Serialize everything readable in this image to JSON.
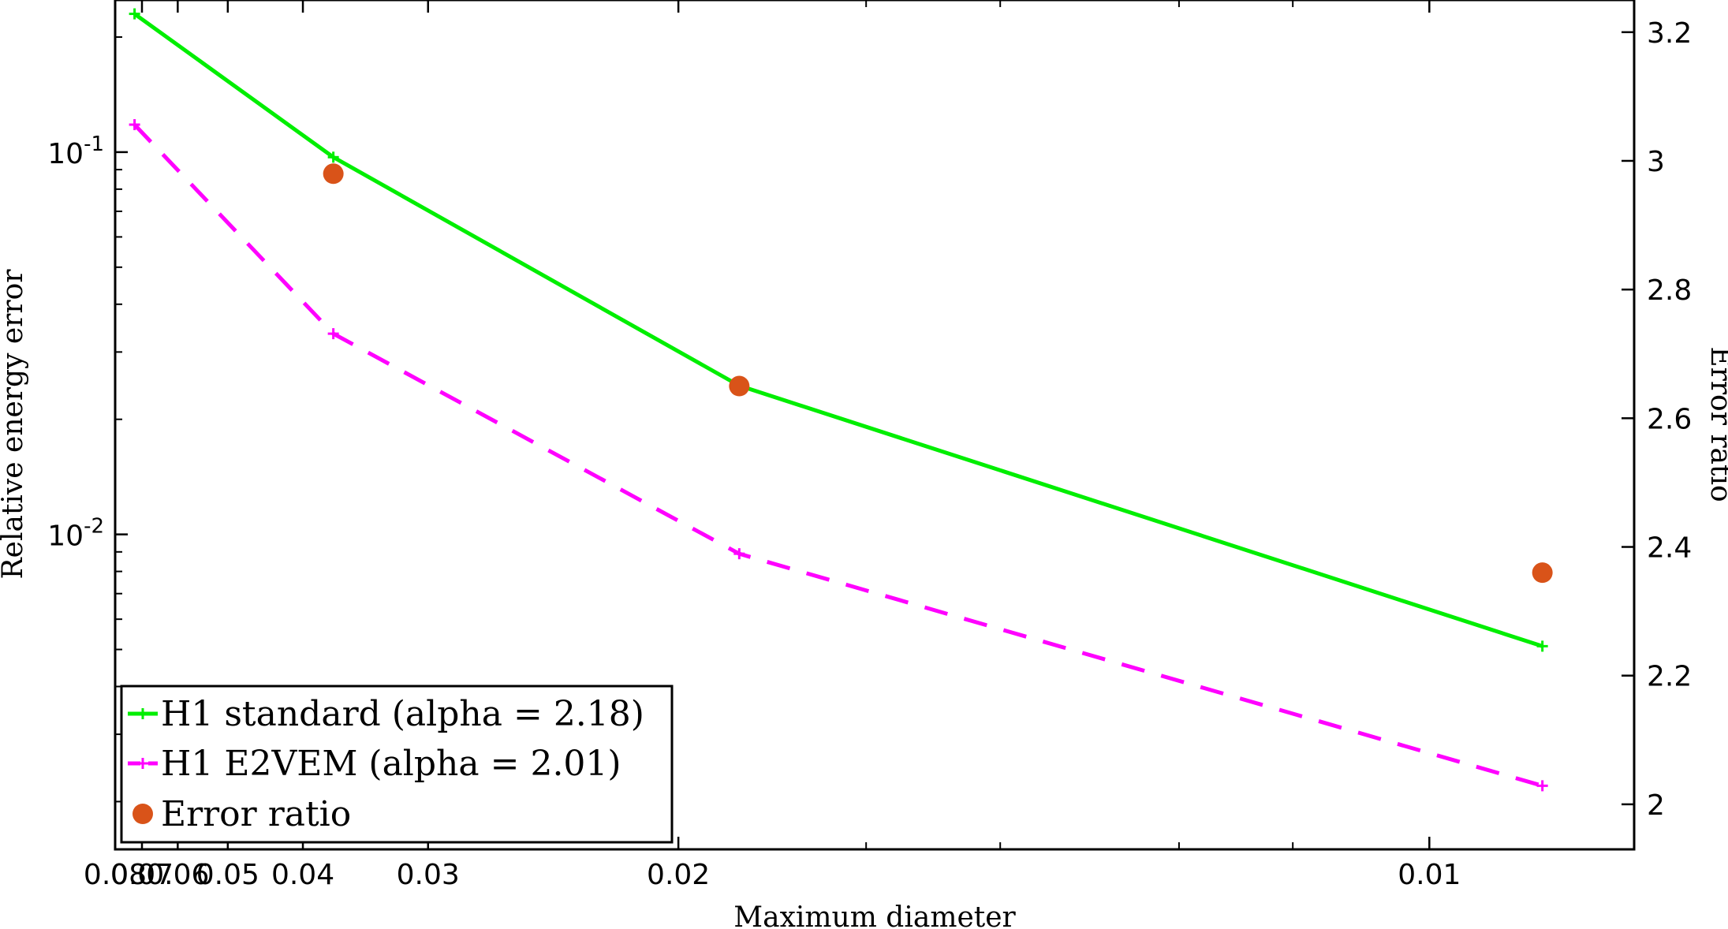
{
  "chart_data": {
    "type": "line",
    "xlabel": "Maximum diameter",
    "ylabel_left": "Relative energy error",
    "ylabel_right": "Error ratio",
    "x_scale": "reciprocal",
    "x_reversed": true,
    "xlim": [
      0.08,
      0.0088
    ],
    "x_ticks": [
      {
        "value": 0.08,
        "label": "0.08"
      },
      {
        "value": 0.07,
        "label": "0.07"
      },
      {
        "value": 0.06,
        "label": "0.06"
      },
      {
        "value": 0.05,
        "label": "0.05"
      },
      {
        "value": 0.04,
        "label": "0.04"
      },
      {
        "value": 0.03,
        "label": "0.03"
      },
      {
        "value": 0.02,
        "label": "0.02"
      },
      {
        "value": 0.01,
        "label": "0.01"
      }
    ],
    "x_minor_ticks": [
      0.016,
      0.014,
      0.012,
      0.011
    ],
    "y_left_scale": "log",
    "y_left_lim": [
      0.0015,
      0.25
    ],
    "y_left_ticks": [
      {
        "value": 0.1,
        "base": "10",
        "exp": "-1"
      },
      {
        "value": 0.01,
        "base": "10",
        "exp": "-2"
      }
    ],
    "y_right_scale": "linear",
    "y_right_lim": [
      1.93,
      3.25
    ],
    "y_right_ticks": [
      {
        "value": 3.2,
        "label": "3.2"
      },
      {
        "value": 3,
        "label": "3"
      },
      {
        "value": 2.8,
        "label": "2.8"
      },
      {
        "value": 2.6,
        "label": "2.6"
      },
      {
        "value": 2.4,
        "label": "2.4"
      },
      {
        "value": 2.2,
        "label": "2.2"
      },
      {
        "value": 2,
        "label": "2"
      }
    ],
    "x": [
      0.0725,
      0.037,
      0.0185,
      0.0093
    ],
    "series": [
      {
        "name": "H1 standard (alpha = 2.18)",
        "axis": "left",
        "style": "solid",
        "marker": "plus",
        "color": "#00ee00",
        "values": [
          0.23,
          0.097,
          0.0245,
          0.0051
        ]
      },
      {
        "name": "H1 E2VEM (alpha = 2.01)",
        "axis": "left",
        "style": "dashed",
        "marker": "plus",
        "color": "#ff00ff",
        "values": [
          0.118,
          0.0335,
          0.0089,
          0.0022
        ]
      },
      {
        "name": "Error ratio",
        "axis": "right",
        "style": "markers",
        "marker": "circle",
        "color": "#d95319",
        "values": [
          2.125,
          2.98,
          2.65,
          2.36
        ]
      }
    ],
    "grid": false,
    "legend_position": "bottom-left"
  }
}
